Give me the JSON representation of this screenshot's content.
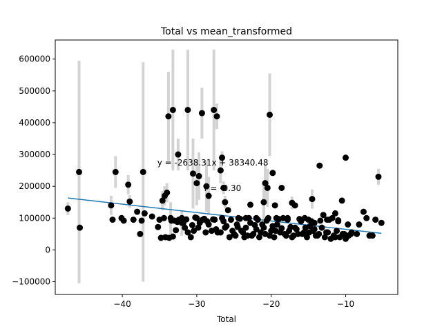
{
  "chart_data": {
    "type": "scatter",
    "title": "Total vs mean_transformed",
    "xlabel": "Total",
    "ylabel": "",
    "xlim": [
      -49.0,
      -3.0
    ],
    "ylim": [
      -140000,
      660000
    ],
    "xticks": [
      -40,
      -30,
      -20,
      -10
    ],
    "yticks": [
      -100000,
      0,
      100000,
      200000,
      300000,
      400000,
      500000,
      600000
    ],
    "xtick_labels": [
      "−40",
      "−30",
      "−20",
      "−10"
    ],
    "ytick_labels": [
      "−100000",
      "0",
      "100000",
      "200000",
      "300000",
      "400000",
      "500000",
      "600000"
    ],
    "grid": false,
    "annotations": {
      "equation": "y = -2638.31x + 38340.48",
      "r": "r = -0.30",
      "equation_pos": [
        -35.3,
        265000
      ],
      "r_pos": [
        -29.0,
        185000
      ]
    },
    "trend_line": {
      "slope": -2638.31,
      "intercept": 38340.48,
      "x_range": [
        -47.3,
        -5.2
      ]
    },
    "points": [
      [
        -47.3,
        130000,
        20000
      ],
      [
        -45.8,
        245000,
        350000
      ],
      [
        -45.7,
        70000,
        0
      ],
      [
        -41.5,
        140000,
        30000
      ],
      [
        -41.3,
        95000,
        0
      ],
      [
        -40.9,
        245000,
        50000
      ],
      [
        -40.1,
        100000,
        0
      ],
      [
        -39.8,
        92000,
        0
      ],
      [
        -39.2,
        205000,
        30000
      ],
      [
        -39.0,
        152000,
        20000
      ],
      [
        -38.5,
        95000,
        0
      ],
      [
        -38.0,
        120000,
        0
      ],
      [
        -37.6,
        50000,
        0
      ],
      [
        -37.4,
        92000,
        0
      ],
      [
        -37.2,
        245000,
        345000
      ],
      [
        -37.0,
        115000,
        0
      ],
      [
        -36.0,
        105000,
        0
      ],
      [
        -35.2,
        72000,
        0
      ],
      [
        -34.6,
        155000,
        30000
      ],
      [
        -34.3,
        170000,
        30000
      ],
      [
        -34.0,
        180000,
        30000
      ],
      [
        -33.8,
        420000,
        140000
      ],
      [
        -33.5,
        100000,
        50000
      ],
      [
        -33.2,
        440000,
        190000
      ],
      [
        -32.5,
        300000,
        50000
      ],
      [
        -32.0,
        85000,
        40000
      ],
      [
        -31.2,
        440000,
        190000
      ],
      [
        -30.5,
        240000,
        110000
      ],
      [
        -30.0,
        210000,
        70000
      ],
      [
        -29.7,
        232000,
        75000
      ],
      [
        -29.3,
        430000,
        80000
      ],
      [
        -28.7,
        200000,
        80000
      ],
      [
        -28.4,
        170000,
        60000
      ],
      [
        -27.7,
        440000,
        190000
      ],
      [
        -27.3,
        420000,
        40000
      ],
      [
        -26.8,
        250000,
        40000
      ],
      [
        -26.6,
        290000,
        20000
      ],
      [
        -26.4,
        195000,
        20000
      ],
      [
        -26.2,
        150000,
        20000
      ],
      [
        -25.8,
        125000,
        0
      ],
      [
        -24.5,
        72000,
        0
      ],
      [
        -23.4,
        100000,
        0
      ],
      [
        -22.8,
        142000,
        0
      ],
      [
        -22.0,
        100000,
        0
      ],
      [
        -21.0,
        150000,
        60000
      ],
      [
        -20.8,
        210000,
        60000
      ],
      [
        -20.5,
        195000,
        60000
      ],
      [
        -20.2,
        425000,
        130000
      ],
      [
        -19.8,
        242000,
        0
      ],
      [
        -19.5,
        140000,
        0
      ],
      [
        -19.3,
        100000,
        0
      ],
      [
        -18.6,
        195000,
        0
      ],
      [
        -17.8,
        100000,
        0
      ],
      [
        -17.2,
        148000,
        20000
      ],
      [
        -16.8,
        140000,
        0
      ],
      [
        -15.5,
        100000,
        0
      ],
      [
        -15.0,
        95000,
        0
      ],
      [
        -14.5,
        160000,
        30000
      ],
      [
        -14.2,
        85000,
        0
      ],
      [
        -13.5,
        265000,
        0
      ],
      [
        -13.0,
        110000,
        0
      ],
      [
        -12.5,
        95000,
        0
      ],
      [
        -11.8,
        100000,
        0
      ],
      [
        -11.4,
        115000,
        0
      ],
      [
        -11.0,
        90000,
        0
      ],
      [
        -10.5,
        155000,
        0
      ],
      [
        -10.0,
        290000,
        0
      ],
      [
        -9.7,
        80000,
        0
      ],
      [
        -9.3,
        50000,
        0
      ],
      [
        -8.5,
        50000,
        0
      ],
      [
        -8.2,
        80000,
        0
      ],
      [
        -7.6,
        120000,
        0
      ],
      [
        -7.2,
        100000,
        0
      ],
      [
        -6.8,
        45000,
        0
      ],
      [
        -6.4,
        45000,
        0
      ],
      [
        -6.0,
        95000,
        0
      ],
      [
        -5.6,
        230000,
        25000
      ],
      [
        -5.2,
        85000,
        0
      ],
      [
        -34.8,
        38000,
        0
      ],
      [
        -34.2,
        40000,
        0
      ],
      [
        -33.7,
        38000,
        0
      ],
      [
        -33.2,
        42000,
        0
      ],
      [
        -32.8,
        62000,
        0
      ],
      [
        -32.4,
        95000,
        0
      ],
      [
        -32.0,
        100000,
        0
      ],
      [
        -31.6,
        70000,
        0
      ],
      [
        -31.2,
        55000,
        0
      ],
      [
        -30.8,
        40000,
        0
      ],
      [
        -30.4,
        60000,
        0
      ],
      [
        -30.0,
        100000,
        0
      ],
      [
        -29.6,
        85000,
        0
      ],
      [
        -29.2,
        95000,
        0
      ],
      [
        -28.8,
        55000,
        0
      ],
      [
        -28.4,
        80000,
        0
      ],
      [
        -28.0,
        60000,
        0
      ],
      [
        -27.6,
        95000,
        0
      ],
      [
        -27.2,
        55000,
        0
      ],
      [
        -26.8,
        55000,
        0
      ],
      [
        -26.4,
        90000,
        0
      ],
      [
        -26.0,
        75000,
        0
      ],
      [
        -25.6,
        40000,
        0
      ],
      [
        -25.2,
        60000,
        0
      ],
      [
        -24.8,
        45000,
        0
      ],
      [
        -24.4,
        100000,
        0
      ],
      [
        -24.0,
        60000,
        0
      ],
      [
        -23.6,
        40000,
        0
      ],
      [
        -23.2,
        45000,
        0
      ],
      [
        -22.8,
        85000,
        0
      ],
      [
        -22.4,
        50000,
        0
      ],
      [
        -22.0,
        65000,
        0
      ],
      [
        -21.6,
        40000,
        0
      ],
      [
        -21.2,
        80000,
        0
      ],
      [
        -20.8,
        50000,
        0
      ],
      [
        -20.4,
        100000,
        0
      ],
      [
        -20.0,
        60000,
        0
      ],
      [
        -19.6,
        40000,
        0
      ],
      [
        -19.2,
        80000,
        0
      ],
      [
        -18.8,
        55000,
        0
      ],
      [
        -18.4,
        100000,
        0
      ],
      [
        -18.0,
        45000,
        0
      ],
      [
        -17.6,
        60000,
        0
      ],
      [
        -17.2,
        40000,
        0
      ],
      [
        -16.8,
        70000,
        0
      ],
      [
        -16.4,
        50000,
        0
      ],
      [
        -16.0,
        90000,
        0
      ],
      [
        -15.6,
        55000,
        0
      ],
      [
        -15.2,
        40000,
        0
      ],
      [
        -14.8,
        75000,
        0
      ],
      [
        -14.4,
        60000,
        0
      ],
      [
        -14.0,
        45000,
        0
      ],
      [
        -13.6,
        50000,
        0
      ],
      [
        -13.2,
        70000,
        0
      ],
      [
        -12.8,
        40000,
        0
      ],
      [
        -12.4,
        55000,
        0
      ],
      [
        -12.0,
        35000,
        0
      ],
      [
        -11.6,
        45000,
        0
      ],
      [
        -11.2,
        60000,
        0
      ],
      [
        -10.8,
        40000,
        0
      ],
      [
        -10.4,
        50000,
        0
      ],
      [
        -10.0,
        35000,
        0
      ],
      [
        -9.6,
        45000,
        0
      ],
      [
        -9.2,
        55000,
        0
      ],
      [
        -35.0,
        95000,
        0
      ],
      [
        -34.4,
        100000,
        0
      ],
      [
        -33.0,
        92000,
        0
      ],
      [
        -31.4,
        96000,
        0
      ],
      [
        -30.2,
        102000,
        0
      ],
      [
        -29.0,
        98000,
        0
      ],
      [
        -27.8,
        96000,
        0
      ],
      [
        -26.6,
        100000,
        0
      ],
      [
        -25.4,
        95000,
        0
      ],
      [
        -24.2,
        98000,
        0
      ],
      [
        -23.0,
        100000,
        0
      ],
      [
        -21.8,
        95000,
        0
      ],
      [
        -20.6,
        92000,
        0
      ],
      [
        -19.0,
        97000,
        0
      ],
      [
        -17.8,
        95000,
        0
      ],
      [
        -16.2,
        97000,
        0
      ],
      [
        -14.6,
        90000,
        0
      ],
      [
        -13.4,
        92000,
        0
      ],
      [
        -12.2,
        95000,
        0
      ],
      [
        -11.0,
        93000,
        0
      ],
      [
        -25.0,
        50000,
        0
      ],
      [
        -23.8,
        55000,
        0
      ],
      [
        -22.6,
        45000,
        0
      ],
      [
        -21.4,
        55000,
        0
      ],
      [
        -20.2,
        45000,
        0
      ],
      [
        -19.4,
        60000,
        0
      ],
      [
        -18.2,
        50000,
        0
      ],
      [
        -17.0,
        45000,
        0
      ],
      [
        -15.8,
        50000,
        0
      ],
      [
        -14.9,
        55000,
        0
      ],
      [
        -13.8,
        45000,
        0
      ],
      [
        -12.6,
        55000,
        0
      ],
      [
        -11.4,
        40000,
        0
      ],
      [
        -10.2,
        50000,
        0
      ],
      [
        -26.2,
        70000,
        0
      ],
      [
        -27.4,
        65000,
        0
      ],
      [
        -28.6,
        90000,
        0
      ],
      [
        -29.8,
        70000,
        0
      ],
      [
        -30.6,
        78000,
        0
      ],
      [
        -31.8,
        85000,
        0
      ],
      [
        -32.6,
        88000,
        0
      ],
      [
        -33.4,
        92000,
        0
      ],
      [
        -24.6,
        80000,
        0
      ],
      [
        -23.4,
        70000,
        0
      ],
      [
        -22.2,
        78000,
        0
      ],
      [
        -21.0,
        70000,
        0
      ],
      [
        -19.8,
        75000,
        0
      ],
      [
        -18.6,
        68000,
        0
      ],
      [
        -17.4,
        72000,
        0
      ],
      [
        -16.6,
        65000,
        0
      ],
      [
        -15.4,
        70000,
        0
      ],
      [
        -14.2,
        65000,
        0
      ]
    ]
  }
}
